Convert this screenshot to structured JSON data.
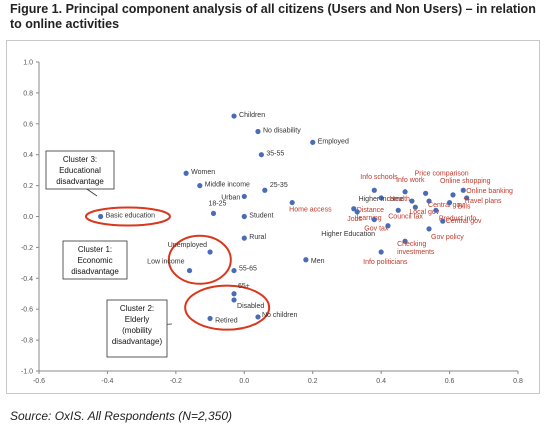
{
  "figure": {
    "title": "Figure 1. Principal component analysis of all citizens (Users and Non Users) – in relation to online activities",
    "source": "Source: OxIS. All Respondents (N=2,350)"
  },
  "colors": {
    "point": "#4a6cb5",
    "label_dark": "#333333",
    "label_red": "#c0392b",
    "ellipse": "#d9381e"
  },
  "chart_data": {
    "type": "scatter",
    "title": "",
    "xlabel": "",
    "ylabel": "",
    "xlim": [
      -0.6,
      0.8
    ],
    "ylim": [
      -1.0,
      1.0
    ],
    "xticks": [
      "-0.6",
      "-0.4",
      "-0.2",
      "0.0",
      "0.2",
      "0.4",
      "0.6",
      "0.8"
    ],
    "yticks": [
      "1.0",
      "0.8",
      "0.6",
      "0.4",
      "0.2",
      "0.0",
      "-0.2",
      "-0.4",
      "-0.6",
      "-0.8",
      "-1.0"
    ],
    "grid": false,
    "legend": "none",
    "points": [
      {
        "label": "Children",
        "x": -0.03,
        "y": 0.65,
        "group": "demographic"
      },
      {
        "label": "No disability",
        "x": 0.04,
        "y": 0.55,
        "group": "demographic"
      },
      {
        "label": "Employed",
        "x": 0.2,
        "y": 0.48,
        "group": "demographic"
      },
      {
        "label": "35-55",
        "x": 0.05,
        "y": 0.4,
        "group": "demographic"
      },
      {
        "label": "Women",
        "x": -0.17,
        "y": 0.28,
        "group": "demographic"
      },
      {
        "label": "Middle income",
        "x": -0.13,
        "y": 0.2,
        "group": "demographic"
      },
      {
        "label": "25-35",
        "x": 0.06,
        "y": 0.17,
        "group": "demographic"
      },
      {
        "label": "Urban",
        "x": 0.0,
        "y": 0.13,
        "group": "demographic"
      },
      {
        "label": "Home access",
        "x": 0.14,
        "y": 0.09,
        "group": "activity"
      },
      {
        "label": "18-25",
        "x": -0.09,
        "y": 0.02,
        "group": "demographic"
      },
      {
        "label": "Student",
        "x": 0.0,
        "y": 0.0,
        "group": "demographic"
      },
      {
        "label": "Basic education",
        "x": -0.42,
        "y": 0.0,
        "group": "demographic"
      },
      {
        "label": "Rural",
        "x": 0.0,
        "y": -0.14,
        "group": "demographic"
      },
      {
        "label": "Unemployed",
        "x": -0.1,
        "y": -0.23,
        "group": "demographic"
      },
      {
        "label": "Low income",
        "x": -0.16,
        "y": -0.35,
        "group": "demographic"
      },
      {
        "label": "55-65",
        "x": -0.03,
        "y": -0.35,
        "group": "demographic"
      },
      {
        "label": "Men",
        "x": 0.18,
        "y": -0.28,
        "group": "demographic"
      },
      {
        "label": "65+",
        "x": -0.03,
        "y": -0.5,
        "group": "demographic"
      },
      {
        "label": "Disabled",
        "x": -0.03,
        "y": -0.54,
        "group": "demographic"
      },
      {
        "label": "Retired",
        "x": -0.1,
        "y": -0.66,
        "group": "demographic"
      },
      {
        "label": "No children",
        "x": 0.04,
        "y": -0.65,
        "group": "demographic"
      },
      {
        "label": "Info schools",
        "x": 0.38,
        "y": 0.17,
        "group": "activity"
      },
      {
        "label": "Info work",
        "x": 0.47,
        "y": 0.16,
        "group": "activity"
      },
      {
        "label": "Price comparison",
        "x": 0.53,
        "y": 0.15,
        "group": "activity"
      },
      {
        "label": "Online shopping",
        "x": 0.61,
        "y": 0.14,
        "group": "activity"
      },
      {
        "label": "Online banking",
        "x": 0.64,
        "y": 0.17,
        "group": "activity"
      },
      {
        "label": "Travel plans",
        "x": 0.65,
        "y": 0.12,
        "group": "activity"
      },
      {
        "label": "Higher income",
        "x": 0.4,
        "y": 0.12,
        "group": "demographic"
      },
      {
        "label": "Health",
        "x": 0.49,
        "y": 0.1,
        "group": "activity"
      },
      {
        "label": "Central gov",
        "x": 0.54,
        "y": 0.1,
        "group": "activity"
      },
      {
        "label": "Bills",
        "x": 0.6,
        "y": 0.09,
        "group": "activity"
      },
      {
        "label": "Distance learning",
        "x": 0.32,
        "y": 0.05,
        "group": "activity"
      },
      {
        "label": "Local gov",
        "x": 0.5,
        "y": 0.06,
        "group": "activity"
      },
      {
        "label": "Product info",
        "x": 0.56,
        "y": 0.04,
        "group": "activity"
      },
      {
        "label": "Jobs",
        "x": 0.33,
        "y": 0.03,
        "group": "activity"
      },
      {
        "label": "Council tax",
        "x": 0.45,
        "y": 0.04,
        "group": "activity"
      },
      {
        "label": "Gov tax",
        "x": 0.38,
        "y": -0.02,
        "group": "activity"
      },
      {
        "label": "Central gov",
        "x": 0.58,
        "y": -0.03,
        "group": "activity"
      },
      {
        "label": "Gov policy",
        "x": 0.54,
        "y": -0.08,
        "group": "activity"
      },
      {
        "label": "Higher Education",
        "x": 0.42,
        "y": -0.06,
        "group": "demographic"
      },
      {
        "label": "Checking investments",
        "x": 0.47,
        "y": -0.16,
        "group": "activity"
      },
      {
        "label": "Info politicians",
        "x": 0.4,
        "y": -0.23,
        "group": "activity"
      }
    ],
    "annotations": [
      {
        "title": "Cluster 3:",
        "lines": [
          "Cluster 3:",
          "Educational",
          "disadvantage"
        ]
      },
      {
        "title": "Cluster 1:",
        "lines": [
          "Cluster 1:",
          "Economic",
          "disadvantage"
        ]
      },
      {
        "title": "Cluster 2:",
        "lines": [
          "Cluster 2:",
          "Elderly",
          "(mobility",
          "disadvantage)"
        ]
      }
    ]
  }
}
